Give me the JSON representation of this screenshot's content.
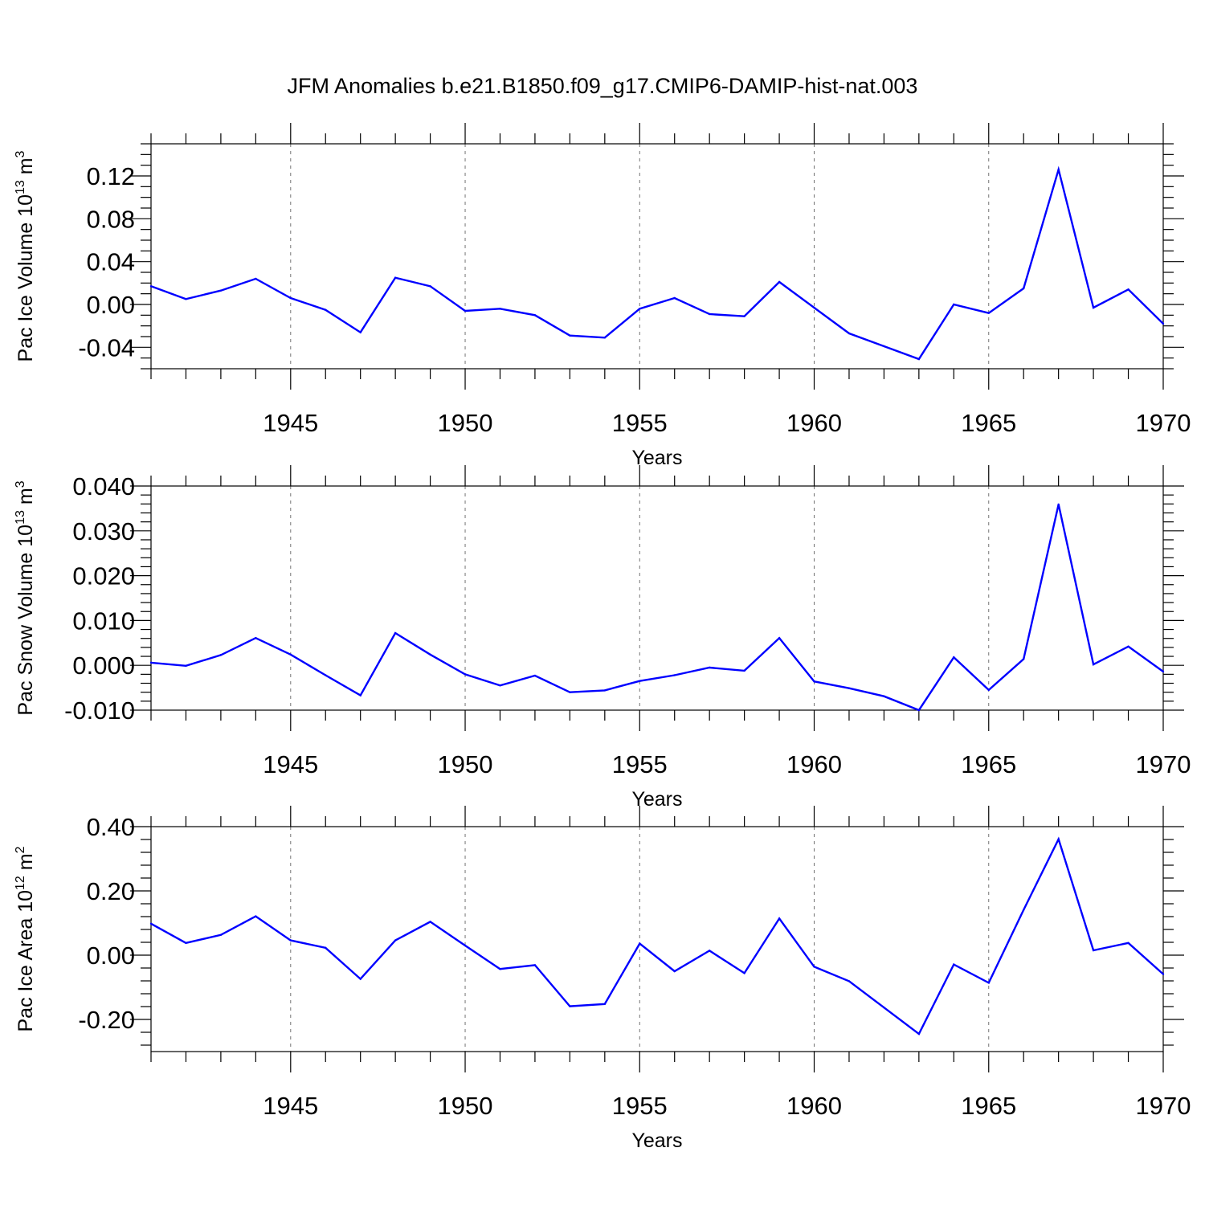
{
  "page_title": "JFM Anomalies b.e21.B1850.f09_g17.CMIP6-DAMIP-hist-nat.003",
  "colors": {
    "line": "#0000ff",
    "axis": "#000000"
  },
  "chart_data": [
    {
      "type": "line",
      "xlabel": "Years",
      "ylabel": {
        "text": "Pac Ice Volume 10",
        "exp": "13",
        "unit": " m",
        "unit_exp": "3"
      },
      "xlim": [
        1941,
        1970
      ],
      "ylim": [
        -0.06,
        0.15
      ],
      "grid_x": true,
      "x_major_ticks": [
        1945,
        1950,
        1955,
        1960,
        1965,
        1970
      ],
      "x_tick_labels": [
        "1945",
        "1950",
        "1955",
        "1960",
        "1965",
        "1970"
      ],
      "x_minor_step": 1,
      "y_major_ticks": [
        -0.04,
        0.0,
        0.04,
        0.08,
        0.12
      ],
      "y_tick_labels": [
        "-0.04",
        "0.00",
        "0.04",
        "0.08",
        "0.12"
      ],
      "y_minor_step": 0.01,
      "x": [
        1941,
        1942,
        1943,
        1944,
        1945,
        1946,
        1947,
        1948,
        1949,
        1950,
        1951,
        1952,
        1953,
        1954,
        1955,
        1956,
        1957,
        1958,
        1959,
        1960,
        1961,
        1962,
        1963,
        1964,
        1965,
        1966,
        1967,
        1968,
        1969,
        1970
      ],
      "values": [
        0.017,
        0.005,
        0.013,
        0.024,
        0.006,
        -0.005,
        -0.026,
        0.025,
        0.017,
        -0.006,
        -0.004,
        -0.01,
        -0.029,
        -0.031,
        -0.004,
        0.006,
        -0.009,
        -0.011,
        0.021,
        -0.003,
        -0.027,
        -0.039,
        -0.051,
        0.0,
        -0.008,
        0.015,
        0.126,
        -0.003,
        0.014,
        -0.018
      ]
    },
    {
      "type": "line",
      "xlabel": "Years",
      "ylabel": {
        "text": "Pac Snow Volume 10",
        "exp": "13",
        "unit": " m",
        "unit_exp": "3"
      },
      "xlim": [
        1941,
        1970
      ],
      "ylim": [
        -0.01,
        0.04
      ],
      "grid_x": true,
      "x_major_ticks": [
        1945,
        1950,
        1955,
        1960,
        1965,
        1970
      ],
      "x_tick_labels": [
        "1945",
        "1950",
        "1955",
        "1960",
        "1965",
        "1970"
      ],
      "x_minor_step": 1,
      "y_major_ticks": [
        -0.01,
        0.0,
        0.01,
        0.02,
        0.03,
        0.04
      ],
      "y_tick_labels": [
        "-0.010",
        "0.000",
        "0.010",
        "0.020",
        "0.030",
        "0.040"
      ],
      "y_minor_step": 0.002,
      "x": [
        1941,
        1942,
        1943,
        1944,
        1945,
        1946,
        1947,
        1948,
        1949,
        1950,
        1951,
        1952,
        1953,
        1954,
        1955,
        1956,
        1957,
        1958,
        1959,
        1960,
        1961,
        1962,
        1963,
        1964,
        1965,
        1966,
        1967,
        1968,
        1969,
        1970
      ],
      "values": [
        0.0006,
        -0.0001,
        0.0023,
        0.0061,
        0.0024,
        -0.0022,
        -0.0067,
        0.0072,
        0.0024,
        -0.002,
        -0.0045,
        -0.0023,
        -0.006,
        -0.0056,
        -0.0035,
        -0.0022,
        -0.0005,
        -0.0012,
        0.0061,
        -0.0036,
        -0.0051,
        -0.0069,
        -0.01,
        0.0018,
        -0.0055,
        0.0014,
        0.0359,
        0.0002,
        0.0042,
        -0.0014
      ]
    },
    {
      "type": "line",
      "xlabel": "Years",
      "ylabel": {
        "text": "Pac Ice Area 10",
        "exp": "12",
        "unit": " m",
        "unit_exp": "2"
      },
      "xlim": [
        1941,
        1970
      ],
      "ylim": [
        -0.3,
        0.4
      ],
      "grid_x": true,
      "x_major_ticks": [
        1945,
        1950,
        1955,
        1960,
        1965,
        1970
      ],
      "x_tick_labels": [
        "1945",
        "1950",
        "1955",
        "1960",
        "1965",
        "1970"
      ],
      "x_minor_step": 1,
      "y_major_ticks": [
        -0.2,
        0.0,
        0.2,
        0.4
      ],
      "y_tick_labels": [
        "-0.20",
        "0.00",
        "0.20",
        "0.40"
      ],
      "y_minor_step": 0.04,
      "x": [
        1941,
        1942,
        1943,
        1944,
        1945,
        1946,
        1947,
        1948,
        1949,
        1950,
        1951,
        1952,
        1953,
        1954,
        1955,
        1956,
        1957,
        1958,
        1959,
        1960,
        1961,
        1962,
        1963,
        1964,
        1965,
        1966,
        1967,
        1968,
        1969,
        1970
      ],
      "values": [
        0.098,
        0.038,
        0.063,
        0.121,
        0.046,
        0.023,
        -0.074,
        0.046,
        0.104,
        0.03,
        -0.043,
        -0.031,
        -0.159,
        -0.152,
        0.036,
        -0.05,
        0.014,
        -0.056,
        0.114,
        -0.036,
        -0.081,
        -0.163,
        -0.245,
        -0.029,
        -0.086,
        0.141,
        0.361,
        0.015,
        0.038,
        -0.059
      ]
    }
  ]
}
